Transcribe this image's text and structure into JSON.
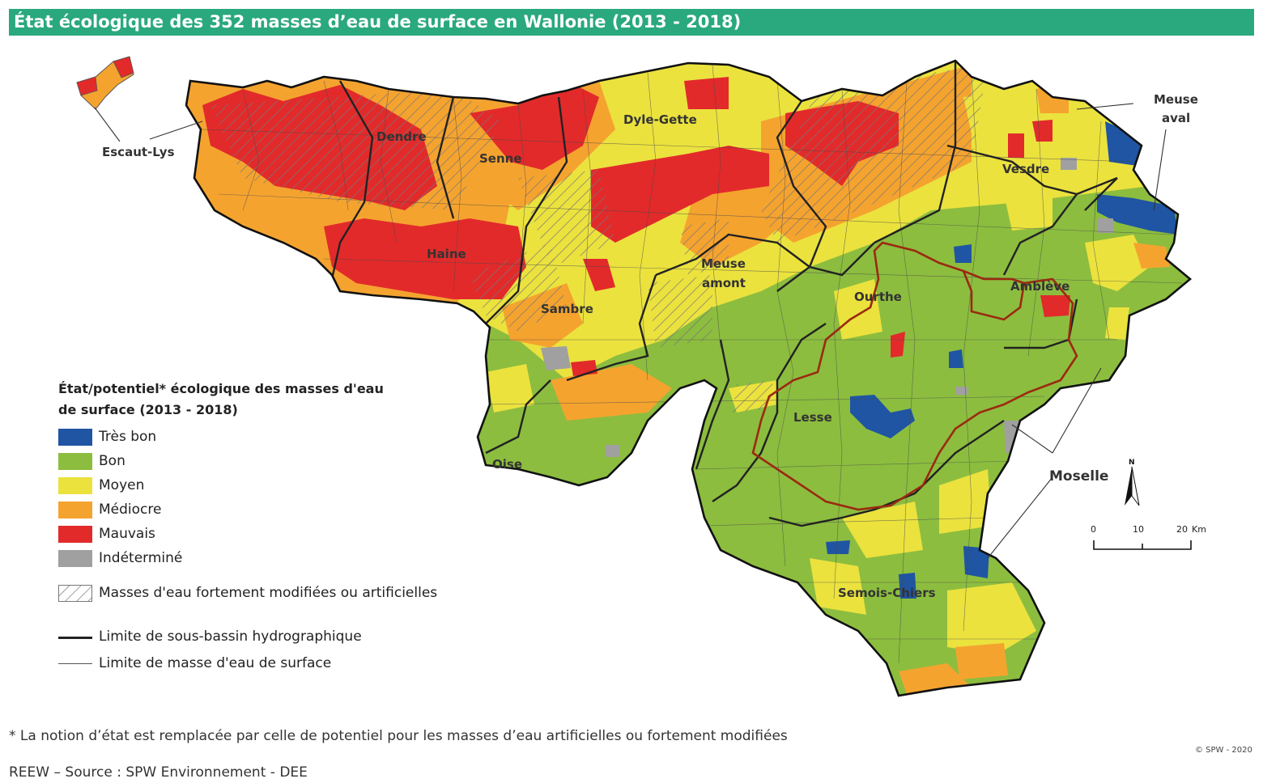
{
  "title": "État écologique des 352 masses d’eau de surface en Wallonie (2013 - 2018)",
  "colors": {
    "tres_bon": "#1f55a3",
    "bon": "#8cbd3f",
    "moyen": "#ebe23e",
    "mediocre": "#f5a32f",
    "mauvais": "#e22a2b",
    "indetermine": "#a0a0a0",
    "title_bar": "#2aa87e",
    "basin_limit": "#222222",
    "highlight_limit": "#9b2a10"
  },
  "basins": {
    "escaut_lys": "Escaut-Lys",
    "dendre": "Dendre",
    "senne": "Senne",
    "dyle_gette": "Dyle-Gette",
    "meuse_aval_1": "Meuse",
    "meuse_aval_2": "aval",
    "vesdre": "Vesdre",
    "haine": "Haine",
    "meuse_amont_1": "Meuse",
    "meuse_amont_2": "amont",
    "ourthe": "Ourthe",
    "ambleve": "Amblève",
    "sambre": "Sambre",
    "lesse": "Lesse",
    "oise": "Oise",
    "moselle": "Moselle",
    "semois_chiers": "Semois-Chiers"
  },
  "legend": {
    "title": "État/potentiel* écologique des masses d'eau de surface (2013 - 2018)",
    "classes": [
      {
        "label": "Très bon",
        "color": "#1f55a3"
      },
      {
        "label": "Bon",
        "color": "#8cbd3f"
      },
      {
        "label": "Moyen",
        "color": "#ebe23e"
      },
      {
        "label": "Médiocre",
        "color": "#f5a32f"
      },
      {
        "label": "Mauvais",
        "color": "#e22a2b"
      },
      {
        "label": "Indéterminé",
        "color": "#a0a0a0"
      }
    ],
    "hatched": "Masses d'eau fortement modifiées ou artificielles",
    "basin_limit": "Limite de sous-bassin hydrographique",
    "waterbody_limit": "Limite de masse d'eau de surface"
  },
  "scale": {
    "t0": "0",
    "t1": "10",
    "t2": "20",
    "unit": "Km"
  },
  "north": "N",
  "footnote": "* La notion d’état est remplacée par celle de potentiel pour les masses d’eau artificielles ou fortement modifiées",
  "source": "REEW – Source : SPW Environnement - DEE",
  "copyright": "© SPW - 2020"
}
